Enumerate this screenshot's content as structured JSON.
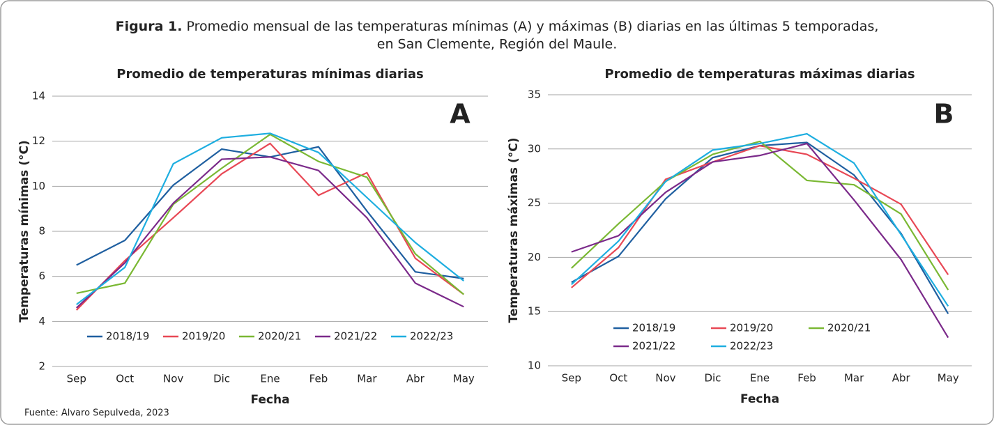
{
  "header": {
    "label": "Figura 1.",
    "lines": [
      "Promedio mensual de las temperaturas mínimas (A) y máximas (B) diarias en las últimas 5 temporadas,",
      "en San Clemente, Región del Maule."
    ]
  },
  "chart_data": [
    {
      "type": "line",
      "title": "Promedio de temperaturas mínimas diarias",
      "annotation": "A",
      "x_label": "Fecha",
      "y_label": "Temperaturas mínimas (°C)",
      "categories": [
        "Sep",
        "Oct",
        "Nov",
        "Dic",
        "Ene",
        "Feb",
        "Mar",
        "Abr",
        "May"
      ],
      "ylim": [
        2,
        14
      ],
      "yticks": [
        2,
        4,
        6,
        8,
        10,
        12,
        14
      ],
      "grid": true,
      "legend": "bottom",
      "series": [
        {
          "name": "2018/19",
          "color": "#1f5fa0",
          "values": [
            6.5,
            7.6,
            10.05,
            11.65,
            11.3,
            11.75,
            8.9,
            6.2,
            5.9
          ]
        },
        {
          "name": "2019/20",
          "color": "#e84855",
          "values": [
            4.5,
            6.7,
            8.6,
            10.55,
            11.9,
            9.6,
            10.6,
            6.8,
            5.2
          ]
        },
        {
          "name": "2020/21",
          "color": "#7ab833",
          "values": [
            5.25,
            5.7,
            9.2,
            10.8,
            12.3,
            11.1,
            10.4,
            7.0,
            5.2
          ]
        },
        {
          "name": "2021/22",
          "color": "#7b2a8a",
          "values": [
            4.6,
            6.6,
            9.25,
            11.2,
            11.3,
            10.7,
            8.6,
            5.7,
            4.65
          ]
        },
        {
          "name": "2022/23",
          "color": "#1eaee0",
          "values": [
            4.75,
            6.4,
            11.0,
            12.15,
            12.35,
            11.5,
            9.5,
            7.5,
            5.8
          ]
        }
      ]
    },
    {
      "type": "line",
      "title": "Promedio de temperaturas máximas diarias",
      "annotation": "B",
      "x_label": "Fecha",
      "y_label": "Temperaturas máximas (°C)",
      "categories": [
        "Sep",
        "Oct",
        "Nov",
        "Dic",
        "Ene",
        "Feb",
        "Mar",
        "Abr",
        "May"
      ],
      "ylim": [
        10,
        35
      ],
      "yticks": [
        10,
        15,
        20,
        25,
        30,
        35
      ],
      "grid": true,
      "legend": "bottom",
      "series": [
        {
          "name": "2018/19",
          "color": "#1f5fa0",
          "values": [
            17.7,
            20.1,
            25.4,
            29.2,
            30.3,
            30.6,
            27.6,
            22.2,
            14.8
          ]
        },
        {
          "name": "2019/20",
          "color": "#e84855",
          "values": [
            17.2,
            20.9,
            27.2,
            28.8,
            30.3,
            29.5,
            27.3,
            24.9,
            18.4
          ]
        },
        {
          "name": "2020/21",
          "color": "#7ab833",
          "values": [
            19.0,
            23.1,
            27.0,
            29.5,
            30.7,
            27.1,
            26.7,
            24.0,
            17.0
          ]
        },
        {
          "name": "2021/22",
          "color": "#7b2a8a",
          "values": [
            20.5,
            22.0,
            26.0,
            28.8,
            29.4,
            30.5,
            25.3,
            19.8,
            12.6
          ]
        },
        {
          "name": "2022/23",
          "color": "#1eaee0",
          "values": [
            17.5,
            21.5,
            27.0,
            29.9,
            30.5,
            31.4,
            28.7,
            22.1,
            15.5
          ]
        }
      ]
    }
  ],
  "source": "Fuente: Alvaro Sepulveda, 2023"
}
